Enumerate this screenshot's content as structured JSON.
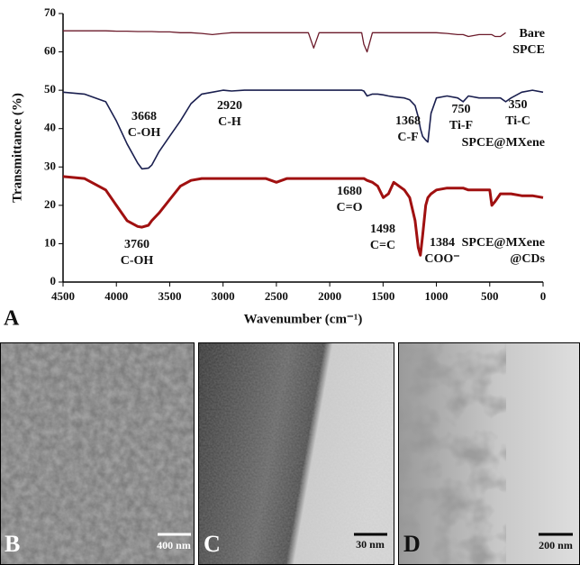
{
  "chart_data": {
    "type": "line",
    "xlabel": "Wavenumber (cm⁻¹)",
    "ylabel": "Transmittance (%)",
    "xlim": [
      4500,
      0
    ],
    "ylim": [
      0,
      70
    ],
    "xticks": [
      4500,
      4000,
      3500,
      3000,
      2500,
      2000,
      1500,
      1000,
      500,
      0
    ],
    "yticks": [
      0,
      10,
      20,
      30,
      40,
      50,
      60,
      70
    ],
    "x": [
      4500,
      4300,
      4100,
      4000,
      3900,
      3800,
      3760,
      3700,
      3668,
      3600,
      3500,
      3400,
      3300,
      3200,
      3100,
      3000,
      2920,
      2800,
      2600,
      2500,
      2400,
      2200,
      2150,
      2100,
      2000,
      1800,
      1700,
      1680,
      1650,
      1600,
      1550,
      1498,
      1450,
      1400,
      1300,
      1250,
      1200,
      1170,
      1150,
      1130,
      1100,
      1080,
      1050,
      1000,
      900,
      800,
      750,
      700,
      600,
      500,
      480,
      450,
      400,
      350,
      300,
      200,
      100,
      0
    ],
    "series": [
      {
        "name": "Bare SPCE",
        "color": "#6b1a2a",
        "values": [
          65.5,
          65.5,
          65.5,
          65.4,
          65.4,
          65.3,
          65.3,
          65.3,
          65.3,
          65.2,
          65.2,
          65,
          65,
          64.8,
          64.5,
          64.8,
          65,
          65,
          65,
          65,
          65,
          65,
          61,
          65,
          65,
          65,
          65,
          62,
          60,
          65,
          65,
          65,
          65,
          65,
          65,
          65,
          65,
          65,
          65,
          65,
          65,
          65,
          65,
          65,
          64.8,
          64.5,
          64.5,
          64,
          64.5,
          64.5,
          64.5,
          64,
          64,
          65,
          null,
          null,
          null,
          null
        ]
      },
      {
        "name": "SPCE@MXene",
        "color": "#1a1f4f",
        "values": [
          49.5,
          49,
          47,
          42,
          36,
          31,
          29.5,
          29.7,
          30.5,
          34,
          38,
          42,
          46.5,
          49,
          49.5,
          50,
          49.8,
          50,
          50,
          50,
          50,
          50,
          50,
          50,
          50,
          50,
          50,
          49.8,
          48.5,
          49,
          49,
          48.8,
          48.5,
          48.3,
          48,
          47.5,
          46,
          43,
          40,
          38,
          37,
          36.5,
          44,
          48,
          48.5,
          48,
          47,
          48.5,
          48,
          48,
          48,
          48,
          48,
          47,
          48,
          49.5,
          50,
          49.5
        ]
      },
      {
        "name": "SPCE@MXene @CDs",
        "color": "#a01010",
        "values": [
          27.5,
          27,
          24,
          20,
          16,
          14.5,
          14.3,
          14.8,
          16,
          18,
          21.5,
          25,
          26.5,
          27,
          27,
          27,
          27,
          27,
          27,
          26,
          27,
          27,
          27,
          27,
          27,
          27,
          27,
          27,
          26.5,
          26,
          25,
          22,
          23,
          26,
          24,
          22,
          16,
          9,
          7,
          12,
          20,
          22,
          23,
          24,
          24.5,
          24.5,
          24.5,
          24,
          24,
          24,
          20,
          21,
          23,
          23,
          23,
          22.5,
          22.5,
          22
        ]
      }
    ],
    "annotations": [
      [
        "3668",
        "C-OH"
      ],
      [
        "2920",
        "C-H"
      ],
      [
        "1680",
        "C=O"
      ],
      [
        "1498",
        "C=C"
      ],
      [
        "1368",
        "C-F"
      ],
      [
        "750",
        "Ti-F"
      ],
      [
        "350",
        "Ti-C"
      ],
      [
        "3760",
        "C-OH"
      ],
      [
        "1384",
        "COO⁻"
      ]
    ]
  },
  "panels": {
    "labels": [
      "A",
      "B",
      "C",
      "D"
    ],
    "scale_bars": [
      "400 nm",
      "30 nm",
      "200 nm"
    ]
  }
}
